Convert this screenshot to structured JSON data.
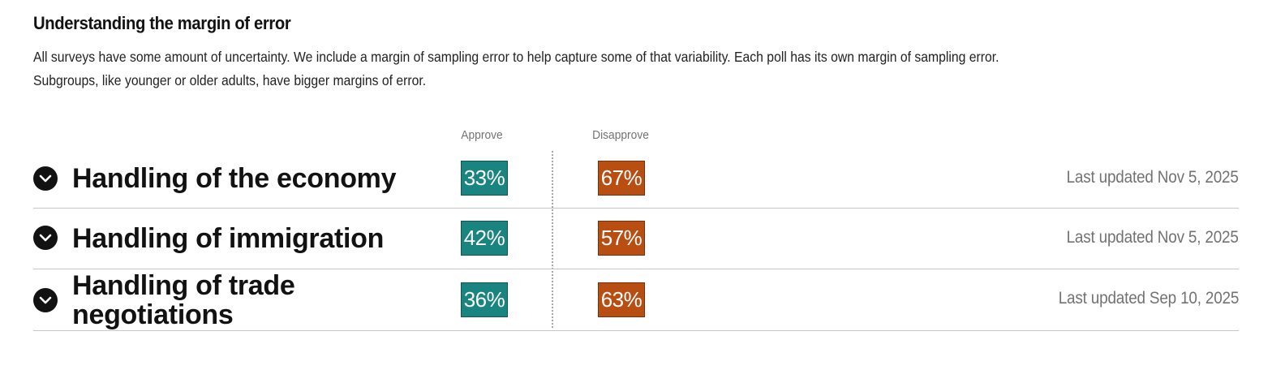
{
  "intro": {
    "title": "Understanding the margin of error",
    "description_line1": "All surveys have some amount of uncertainty. We include a margin of sampling error to help capture some of that variability. Each poll has its own margin of sampling error.",
    "description_line2": "Subgroups, like younger or older adults, have bigger margins of error."
  },
  "columns": {
    "approve": "Approve",
    "disapprove": "Disapprove"
  },
  "colors": {
    "approve": "#1a8580",
    "disapprove": "#b84e12"
  },
  "rows": [
    {
      "label": "Handling of the economy",
      "approve": "33%",
      "disapprove": "67%",
      "updated": "Last updated Nov 5, 2025",
      "toggle_icon": "chevron-down-icon"
    },
    {
      "label": "Handling of immigration",
      "approve": "42%",
      "disapprove": "57%",
      "updated": "Last updated Nov 5, 2025",
      "toggle_icon": "chevron-down-icon"
    },
    {
      "label": "Handling of trade negotiations",
      "approve": "36%",
      "disapprove": "63%",
      "updated": "Last updated Sep 10, 2025",
      "toggle_icon": "chevron-down-icon"
    }
  ]
}
